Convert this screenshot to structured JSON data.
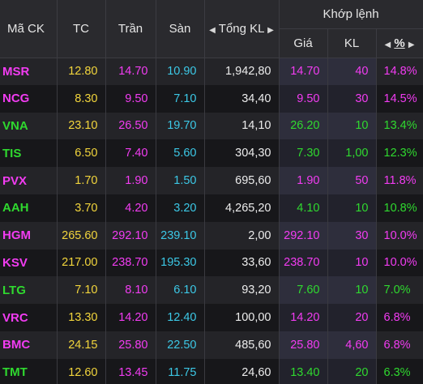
{
  "colors": {
    "ceiling": "#f23cf2",
    "up": "#2fd92f",
    "reference": "#f2d53c",
    "floor": "#3cc8e6",
    "neutral": "#ececec"
  },
  "header": {
    "symbol": "Mã CK",
    "ref": "TC",
    "ceiling": "Trần",
    "floor": "Sàn",
    "total_volume": "Tổng KL",
    "match_group": "Khớp lệnh",
    "match_price": "Giá",
    "match_volume": "KL",
    "change_pct": "%",
    "sort_icon": "left-triangle-icon",
    "pct_sort_icons": "triangle-left-right-icon"
  },
  "rows": [
    {
      "symbol": "MSR",
      "ref": "12.80",
      "ceiling": "14.70",
      "floor": "10.90",
      "total_volume": "1,942,80",
      "price": "14.70",
      "volume": "40",
      "pct": "14.8%",
      "status": "ceiling"
    },
    {
      "symbol": "NCG",
      "ref": "8.30",
      "ceiling": "9.50",
      "floor": "7.10",
      "total_volume": "34,40",
      "price": "9.50",
      "volume": "30",
      "pct": "14.5%",
      "status": "ceiling"
    },
    {
      "symbol": "VNA",
      "ref": "23.10",
      "ceiling": "26.50",
      "floor": "19.70",
      "total_volume": "14,10",
      "price": "26.20",
      "volume": "10",
      "pct": "13.4%",
      "status": "up"
    },
    {
      "symbol": "TIS",
      "ref": "6.50",
      "ceiling": "7.40",
      "floor": "5.60",
      "total_volume": "304,30",
      "price": "7.30",
      "volume": "1,00",
      "pct": "12.3%",
      "status": "up"
    },
    {
      "symbol": "PVX",
      "ref": "1.70",
      "ceiling": "1.90",
      "floor": "1.50",
      "total_volume": "695,60",
      "price": "1.90",
      "volume": "50",
      "pct": "11.8%",
      "status": "ceiling"
    },
    {
      "symbol": "AAH",
      "ref": "3.70",
      "ceiling": "4.20",
      "floor": "3.20",
      "total_volume": "4,265,20",
      "price": "4.10",
      "volume": "10",
      "pct": "10.8%",
      "status": "up"
    },
    {
      "symbol": "HGM",
      "ref": "265.60",
      "ceiling": "292.10",
      "floor": "239.10",
      "total_volume": "2,00",
      "price": "292.10",
      "volume": "30",
      "pct": "10.0%",
      "status": "ceiling"
    },
    {
      "symbol": "KSV",
      "ref": "217.00",
      "ceiling": "238.70",
      "floor": "195.30",
      "total_volume": "33,60",
      "price": "238.70",
      "volume": "10",
      "pct": "10.0%",
      "status": "ceiling"
    },
    {
      "symbol": "LTG",
      "ref": "7.10",
      "ceiling": "8.10",
      "floor": "6.10",
      "total_volume": "93,20",
      "price": "7.60",
      "volume": "10",
      "pct": "7.0%",
      "status": "up"
    },
    {
      "symbol": "VRC",
      "ref": "13.30",
      "ceiling": "14.20",
      "floor": "12.40",
      "total_volume": "100,00",
      "price": "14.20",
      "volume": "20",
      "pct": "6.8%",
      "status": "ceiling"
    },
    {
      "symbol": "BMC",
      "ref": "24.15",
      "ceiling": "25.80",
      "floor": "22.50",
      "total_volume": "485,60",
      "price": "25.80",
      "volume": "4,60",
      "pct": "6.8%",
      "status": "ceiling"
    },
    {
      "symbol": "TMT",
      "ref": "12.60",
      "ceiling": "13.45",
      "floor": "11.75",
      "total_volume": "24,60",
      "price": "13.40",
      "volume": "20",
      "pct": "6.3%",
      "status": "up"
    }
  ]
}
